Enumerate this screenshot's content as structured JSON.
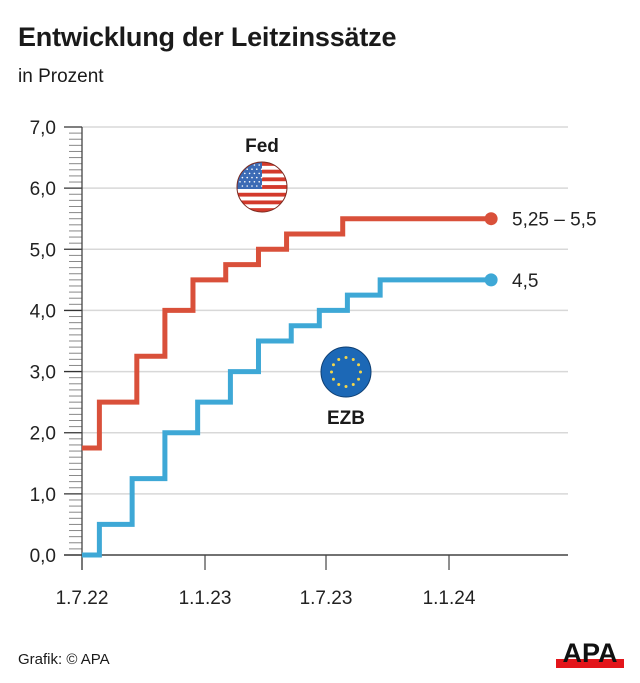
{
  "title": "Entwicklung der Leitzinssätze",
  "subtitle": "in Prozent",
  "source": "Grafik: © APA",
  "logo": "APA",
  "chart_data": {
    "type": "line",
    "step": true,
    "title": "Entwicklung der Leitzinssätze",
    "ylabel": "in Prozent",
    "ylim": [
      0,
      7
    ],
    "yticks": [
      0,
      1,
      2,
      3,
      4,
      5,
      6,
      7
    ],
    "ytick_labels": [
      "0,0",
      "1,0",
      "2,0",
      "3,0",
      "4,0",
      "5,0",
      "6,0",
      "7,0"
    ],
    "xlim": [
      "2022-07-01",
      "2024-09-01"
    ],
    "xticks": [
      "2022-07-01",
      "2023-01-01",
      "2023-07-01",
      "2024-01-01"
    ],
    "xtick_labels": [
      "1.7.22",
      "1.1.23",
      "1.7.23",
      "1.1.24"
    ],
    "grid": true,
    "series": [
      {
        "name": "Fed",
        "color": "#d9503a",
        "end_label": "5,25 – 5,5",
        "icon": "us-flag-icon",
        "points": [
          [
            "2022-07-01",
            1.75
          ],
          [
            "2022-07-27",
            2.5
          ],
          [
            "2022-09-21",
            3.25
          ],
          [
            "2022-11-02",
            4.0
          ],
          [
            "2022-12-14",
            4.5
          ],
          [
            "2023-02-01",
            4.75
          ],
          [
            "2023-03-22",
            5.0
          ],
          [
            "2023-05-03",
            5.25
          ],
          [
            "2023-07-26",
            5.5
          ],
          [
            "2024-03-04",
            5.5
          ]
        ]
      },
      {
        "name": "EZB",
        "color": "#3ea8d6",
        "end_label": "4,5",
        "icon": "eu-flag-icon",
        "points": [
          [
            "2022-07-01",
            0.0
          ],
          [
            "2022-07-27",
            0.5
          ],
          [
            "2022-09-14",
            1.25
          ],
          [
            "2022-11-02",
            2.0
          ],
          [
            "2022-12-21",
            2.5
          ],
          [
            "2023-02-08",
            3.0
          ],
          [
            "2023-03-22",
            3.5
          ],
          [
            "2023-05-10",
            3.75
          ],
          [
            "2023-06-21",
            4.0
          ],
          [
            "2023-08-02",
            4.25
          ],
          [
            "2023-09-20",
            4.5
          ],
          [
            "2024-03-04",
            4.5
          ]
        ]
      }
    ]
  }
}
